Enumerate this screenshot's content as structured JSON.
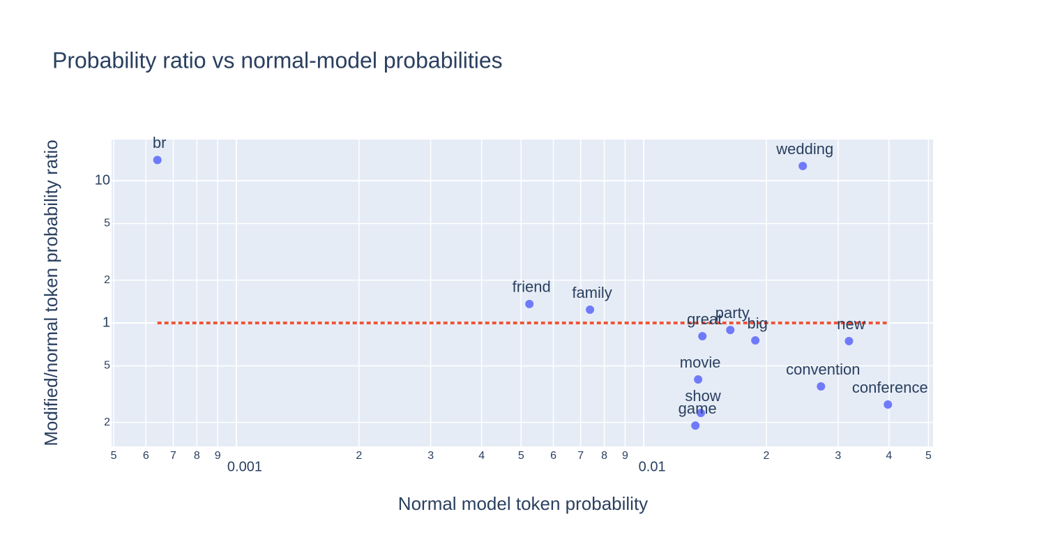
{
  "chart_data": {
    "type": "scatter",
    "title": "Probability ratio vs normal-model probabilities",
    "x_label": "Normal model token probability",
    "y_label": "Modified/normal token probability ratio",
    "xscale": "log",
    "yscale": "log",
    "grid": true,
    "xlim": [
      0.000494,
      0.0513
    ],
    "ylim": [
      0.1356,
      19.5
    ],
    "xticks": [
      {
        "value": 0.0005,
        "label": "5"
      },
      {
        "value": 0.0006,
        "label": "6"
      },
      {
        "value": 0.0007,
        "label": "7"
      },
      {
        "value": 0.0008,
        "label": "8"
      },
      {
        "value": 0.0009,
        "label": "9"
      },
      0.001,
      {
        "value": 0.002,
        "label": "2"
      },
      {
        "value": 0.003,
        "label": "3"
      },
      {
        "value": 0.004,
        "label": "4"
      },
      {
        "value": 0.005,
        "label": "5"
      },
      {
        "value": 0.006,
        "label": "6"
      },
      {
        "value": 0.007,
        "label": "7"
      },
      {
        "value": 0.008,
        "label": "8"
      },
      {
        "value": 0.009,
        "label": "9"
      },
      0.01,
      {
        "value": 0.02,
        "label": "2"
      },
      {
        "value": 0.03,
        "label": "3"
      },
      {
        "value": 0.04,
        "label": "4"
      },
      {
        "value": 0.05,
        "label": "5"
      }
    ],
    "yticks": [
      {
        "value": 0.2,
        "label": "2"
      },
      {
        "value": 0.5,
        "label": "5"
      },
      1,
      2,
      5,
      10
    ],
    "series": [
      {
        "color": "#636efa",
        "labels": [
          "br",
          "friend",
          "family",
          "wedding",
          "great",
          "party",
          "big",
          "new",
          "movie",
          "convention",
          "conference",
          "show",
          "game"
        ],
        "x": [
          0.00064,
          0.00524,
          0.00738,
          0.02457,
          0.01393,
          0.01631,
          0.01879,
          0.0319,
          0.0136,
          0.02723,
          0.03975,
          0.01381,
          0.01339
        ],
        "values": [
          14.0,
          1.36,
          1.24,
          12.7,
          0.807,
          0.893,
          0.754,
          0.746,
          0.401,
          0.358,
          0.267,
          0.233,
          0.19
        ]
      }
    ],
    "reference_line": {
      "x": [
        0.00064,
        0.03975
      ],
      "values": [
        1,
        1
      ],
      "color": "#ef553b"
    }
  }
}
